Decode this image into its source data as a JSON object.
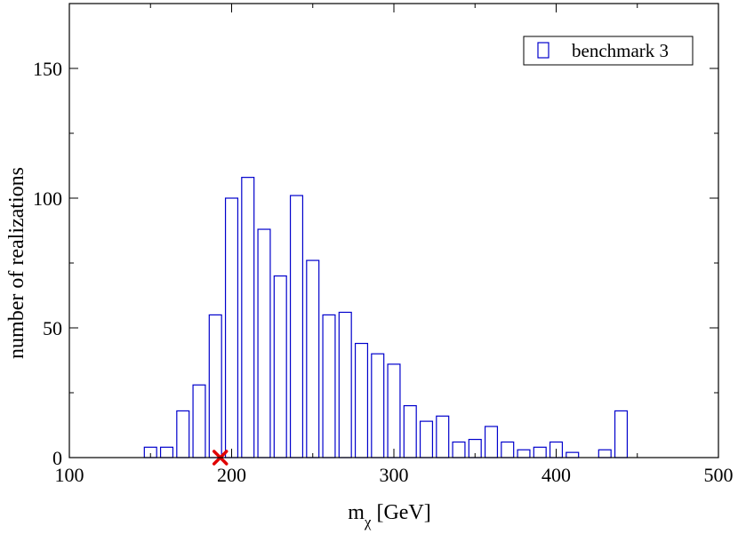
{
  "chart_data": {
    "type": "bar",
    "title": "",
    "xlabel_main": "m",
    "xlabel_sub": "χ",
    "xlabel_unit": "[GeV]",
    "ylabel": "number of realizations",
    "xlim": [
      100,
      500
    ],
    "ylim": [
      0,
      175
    ],
    "x_ticks": [
      100,
      200,
      300,
      400,
      500
    ],
    "y_ticks": [
      0,
      50,
      100,
      150
    ],
    "x_tick_labels": [
      "100",
      "200",
      "300",
      "400",
      "500"
    ],
    "y_tick_labels": [
      "0",
      "50",
      "100",
      "150"
    ],
    "bin_width": 10,
    "series": [
      {
        "name": "benchmark 3",
        "color": "#0000cc",
        "x": [
          150,
          160,
          170,
          180,
          190,
          200,
          210,
          220,
          230,
          240,
          250,
          260,
          270,
          280,
          290,
          300,
          310,
          320,
          330,
          340,
          350,
          360,
          370,
          380,
          390,
          400,
          410,
          420,
          430,
          440
        ],
        "values": [
          4,
          4,
          18,
          28,
          55,
          100,
          108,
          88,
          70,
          101,
          76,
          55,
          56,
          44,
          40,
          36,
          20,
          14,
          16,
          6,
          7,
          12,
          6,
          3,
          4,
          6,
          2,
          0,
          3,
          18
        ]
      }
    ],
    "marker": {
      "x": 193,
      "y": 0,
      "color": "#e00000",
      "symbol": "x"
    },
    "legend_position": "top-right",
    "grid": false
  }
}
